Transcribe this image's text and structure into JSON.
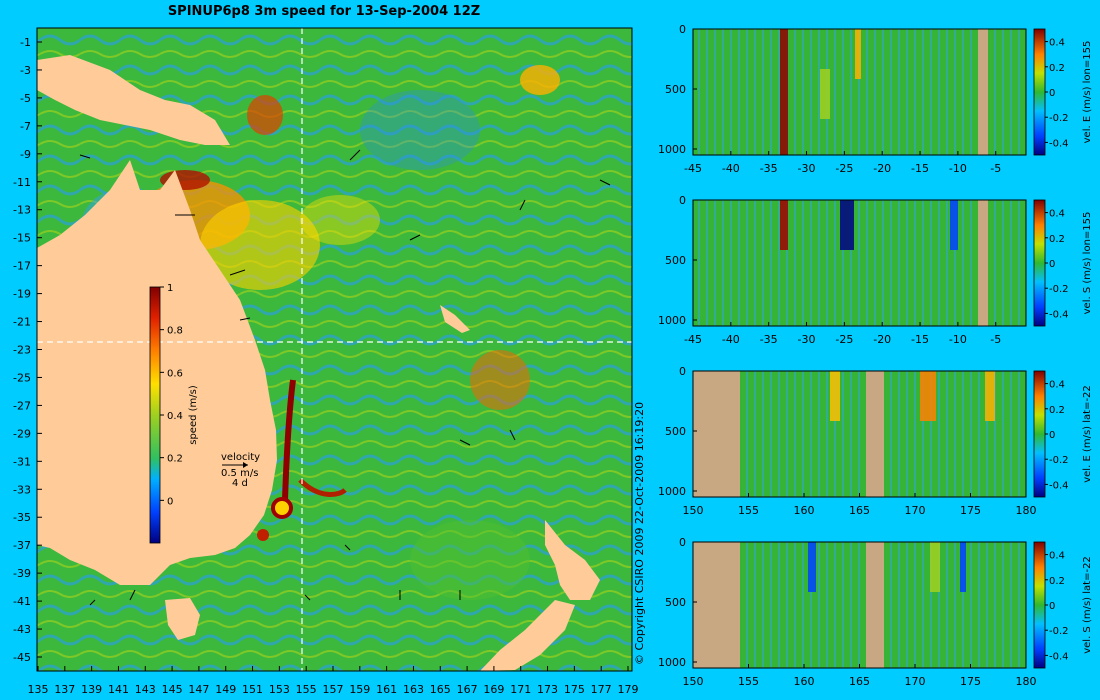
{
  "title": "SPINUP6p8 3m speed for 13-Sep-2004 12Z",
  "copyright": "© Copyright CSIRO 2009   22-Oct-2009 16:19:20",
  "map": {
    "lat_ticks": [
      "-1",
      "-3",
      "-5",
      "-7",
      "-9",
      "-11",
      "-13",
      "-15",
      "-17",
      "-19",
      "-21",
      "-23",
      "-25",
      "-27",
      "-29",
      "-31",
      "-33",
      "-35",
      "-37",
      "-39",
      "-41",
      "-43",
      "-45"
    ],
    "lon_ticks": [
      "135",
      "137",
      "139",
      "141",
      "143",
      "145",
      "147",
      "149",
      "151",
      "153",
      "155",
      "157",
      "159",
      "161",
      "163",
      "165",
      "167",
      "169",
      "171",
      "173",
      "175",
      "177",
      "179"
    ],
    "speed_colorbar": {
      "label": "speed (m/s)",
      "ticks": [
        "1",
        "0.8",
        "0.6",
        "0.4",
        "0.2",
        "0"
      ]
    },
    "velocity_key": {
      "label": "velocity",
      "value": "0.5 m/s",
      "scale": "4 d"
    },
    "section_lon": 155,
    "section_lat": -22
  },
  "sections": [
    {
      "label": "vel. E (m/s) lon=155",
      "x_ticks": [
        "-45",
        "-40",
        "-35",
        "-30",
        "-25",
        "-20",
        "-15",
        "-10",
        "-5"
      ],
      "y_ticks": [
        "0",
        "500",
        "1000"
      ],
      "cb_ticks": [
        "0.4",
        "0.2",
        "0",
        "-0.2",
        "-0.4"
      ]
    },
    {
      "label": "vel. S (m/s) lon=155",
      "x_ticks": [
        "-45",
        "-40",
        "-35",
        "-30",
        "-25",
        "-20",
        "-15",
        "-10",
        "-5"
      ],
      "y_ticks": [
        "0",
        "500",
        "1000"
      ],
      "cb_ticks": [
        "0.4",
        "0.2",
        "0",
        "-0.2",
        "-0.4"
      ]
    },
    {
      "label": "vel. E (m/s) lat=-22",
      "x_ticks": [
        "150",
        "155",
        "160",
        "165",
        "170",
        "175",
        "180"
      ],
      "y_ticks": [
        "0",
        "500",
        "1000"
      ],
      "cb_ticks": [
        "0.4",
        "0.2",
        "0",
        "-0.2",
        "-0.4"
      ]
    },
    {
      "label": "vel. S (m/s) lat=-22",
      "x_ticks": [
        "150",
        "155",
        "160",
        "165",
        "170",
        "175",
        "180"
      ],
      "y_ticks": [
        "0",
        "500",
        "1000"
      ],
      "cb_ticks": [
        "0.4",
        "0.2",
        "0",
        "-0.2",
        "-0.4"
      ]
    }
  ],
  "colors": {
    "background": "#00ccff",
    "land": "#ffcc99",
    "section_land": "#c8a882",
    "ocean_mid": "#33b833"
  }
}
